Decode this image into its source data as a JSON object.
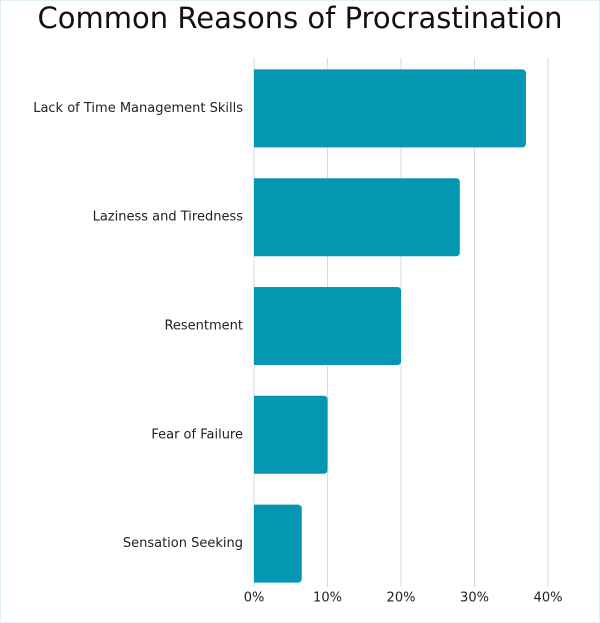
{
  "chart_data": {
    "type": "bar",
    "orientation": "horizontal",
    "title": "Common Reasons of Procrastination",
    "categories": [
      "Lack of Time Management Skills",
      "Laziness and Tiredness",
      "Resentment",
      "Fear of Failure",
      "Sensation Seeking"
    ],
    "values": [
      37,
      28,
      20,
      10,
      6.5
    ],
    "color": "#0497b1",
    "xlim": [
      0,
      40
    ],
    "xticks": [
      {
        "value": 0,
        "label": "0%"
      },
      {
        "value": 10,
        "label": "10%"
      },
      {
        "value": 20,
        "label": "20%"
      },
      {
        "value": 30,
        "label": "30%"
      },
      {
        "value": 40,
        "label": "40%"
      }
    ],
    "grid": true
  }
}
